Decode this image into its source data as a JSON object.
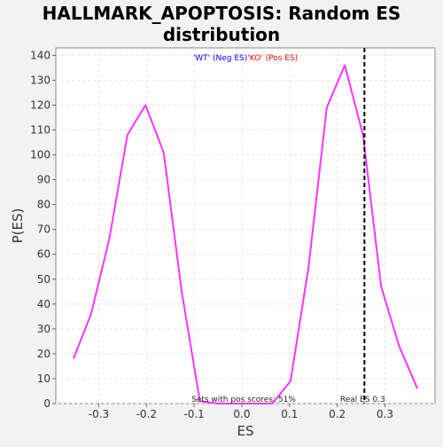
{
  "chart_data": {
    "type": "line",
    "title_lines": [
      "HALLMARK_APOPTOSIS: Random ES",
      "distribution"
    ],
    "xlabel": "ES",
    "ylabel": "P(ES)",
    "xlim": [
      -0.39,
      0.405
    ],
    "ylim": [
      0,
      143
    ],
    "x_ticks": [
      -0.3,
      -0.2,
      -0.1,
      0.0,
      0.1,
      0.2,
      0.3
    ],
    "x_tick_labels": [
      "-0.3",
      "-0.2",
      "-0.1",
      "0.0",
      "0.1",
      "0.2",
      "0.3"
    ],
    "y_ticks": [
      0,
      10,
      20,
      30,
      40,
      50,
      60,
      70,
      80,
      90,
      100,
      110,
      120,
      130,
      140
    ],
    "y_tick_labels": [
      "0",
      "10",
      "20",
      "30",
      "40",
      "50",
      "60",
      "70",
      "80",
      "90",
      "100",
      "110",
      "120",
      "130",
      "140"
    ],
    "grid": true,
    "series": [
      {
        "color": "#ff33ff",
        "x": [
          -0.353,
          -0.316,
          -0.278,
          -0.24,
          -0.202,
          -0.164,
          -0.126,
          -0.088,
          -0.05,
          -0.012,
          0.026,
          0.064,
          0.102,
          0.14,
          0.178,
          0.216,
          0.254,
          0.292,
          0.33,
          0.368
        ],
        "y": [
          18,
          36,
          66,
          108,
          120,
          101,
          45,
          1,
          0,
          0,
          0,
          0,
          9,
          55,
          119,
          136,
          108,
          47,
          23,
          6
        ]
      }
    ],
    "vline": {
      "x": 0.257,
      "label": "Real ES 0.3",
      "style": "dashed",
      "color": "#000000"
    },
    "legend": [
      {
        "text": "'WT' (Neg ES)",
        "color": "#0000ff"
      },
      {
        "text": "'KO' (Pos ES)",
        "color": "#ff0000"
      }
    ],
    "annotation": "Sets with pos scores: 51%"
  }
}
